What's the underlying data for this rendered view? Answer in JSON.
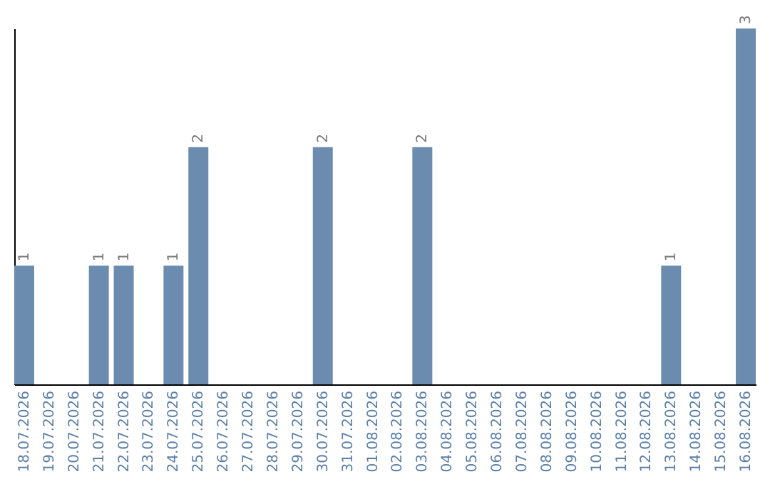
{
  "chart_data": {
    "type": "bar",
    "categories": [
      "18.07.2026",
      "19.07.2026",
      "20.07.2026",
      "21.07.2026",
      "22.07.2026",
      "23.07.2026",
      "24.07.2026",
      "25.07.2026",
      "26.07.2026",
      "27.07.2026",
      "28.07.2026",
      "29.07.2026",
      "30.07.2026",
      "31.07.2026",
      "01.08.2026",
      "02.08.2026",
      "03.08.2026",
      "04.08.2026",
      "05.08.2026",
      "06.08.2026",
      "07.08.2026",
      "08.08.2026",
      "09.08.2026",
      "10.08.2026",
      "11.08.2026",
      "12.08.2026",
      "13.08.2026",
      "14.08.2026",
      "15.08.2026",
      "16.08.2026"
    ],
    "values": [
      1,
      null,
      null,
      1,
      1,
      null,
      1,
      2,
      null,
      null,
      null,
      null,
      2,
      null,
      null,
      null,
      2,
      null,
      null,
      null,
      null,
      null,
      null,
      null,
      null,
      null,
      1,
      null,
      null,
      3
    ],
    "color": "#6b8cae",
    "ylim": [
      0,
      3
    ],
    "data_labels": true,
    "tick_labels": "x",
    "grid": false
  }
}
